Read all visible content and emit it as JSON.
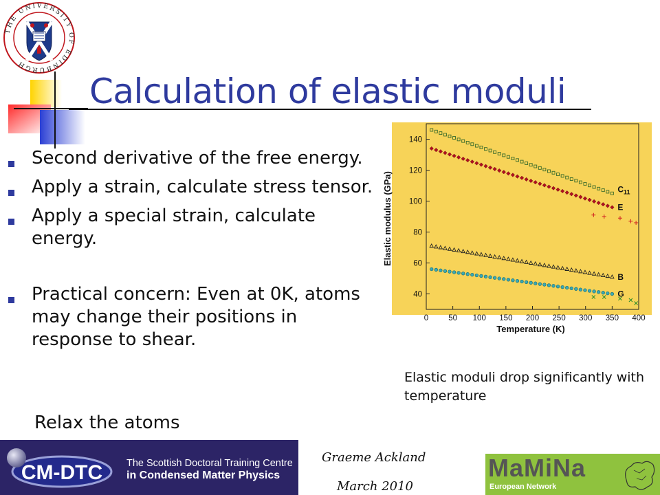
{
  "slide": {
    "title": "Calculation of elastic moduli",
    "bullets": [
      "Second derivative of the free energy.",
      "Apply a strain, calculate stress tensor.",
      "Apply a special strain, calculate energy.",
      "Practical concern: Even at 0K, atoms may change their positions in response to shear."
    ],
    "subnote": "Relax the atoms",
    "caption": "Elastic moduli drop significantly with temperature"
  },
  "crest": {
    "text": "THE UNIVERSITY OF EDINBURGH"
  },
  "footer": {
    "logo_text": "CM-DTC",
    "line1": "The Scottish Doctoral Training Centre",
    "line2": "in Condensed Matter Physics",
    "author": "Graeme Ackland",
    "date": "March 2010",
    "mamina": "MaMiNa",
    "mamina_sub": "European Network"
  },
  "colors": {
    "title": "#2e3a9e",
    "chart_bg": "#f7d358",
    "footer_dark": "#2c2466",
    "mamina_green": "#8fc23e"
  },
  "chart_data": {
    "type": "scatter",
    "xlabel": "Temperature (K)",
    "ylabel": "Elastic modulus (GPa)",
    "xlim": [
      0,
      400
    ],
    "ylim": [
      30,
      150
    ],
    "xticks": [
      0,
      50,
      100,
      150,
      200,
      250,
      300,
      350,
      400
    ],
    "yticks": [
      40,
      60,
      80,
      100,
      120,
      140
    ],
    "series": [
      {
        "name": "C11",
        "marker": "square",
        "color": "#3a6b2a",
        "x_start": 10,
        "x_end": 350,
        "y_start": 146,
        "y_end": 105
      },
      {
        "name": "E",
        "marker": "diamond",
        "color": "#b01020",
        "x_start": 10,
        "x_end": 350,
        "y_start": 134,
        "y_end": 96
      },
      {
        "name": "B",
        "marker": "triangle",
        "color": "#222222",
        "x_start": 10,
        "x_end": 350,
        "y_start": 71,
        "y_end": 51
      },
      {
        "name": "G",
        "marker": "circle",
        "color": "#1a6e78",
        "x_start": 10,
        "x_end": 350,
        "y_start": 56,
        "y_end": 40
      }
    ],
    "extra_points": [
      {
        "marker": "plus",
        "color": "#d02020",
        "points": [
          [
            315,
            91
          ],
          [
            335,
            90
          ],
          [
            365,
            89
          ],
          [
            385,
            87
          ],
          [
            395,
            86
          ]
        ]
      },
      {
        "marker": "cross",
        "color": "#2a8a2a",
        "points": [
          [
            315,
            38
          ],
          [
            335,
            38
          ],
          [
            365,
            37
          ],
          [
            385,
            36
          ],
          [
            395,
            34
          ]
        ]
      }
    ]
  }
}
